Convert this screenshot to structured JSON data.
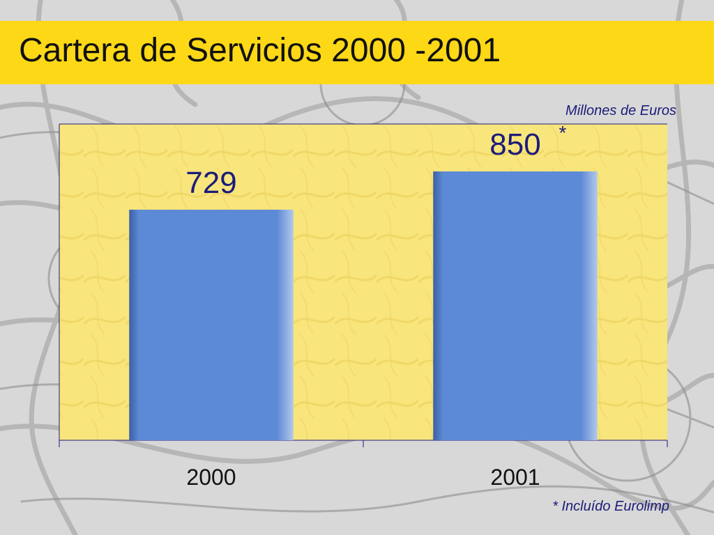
{
  "title": "Cartera de Servicios 2000 -2001",
  "unit_label": "Millones de Euros",
  "footnote": "* Incluído Eurolimp",
  "colors": {
    "title_bar": "#fdd817",
    "plot_area": "#f8e57c",
    "bar": "#5d8ad6",
    "label_text": "#1c1c7a"
  },
  "chart_data": {
    "type": "bar",
    "categories": [
      "2000",
      "2001"
    ],
    "values": [
      729,
      850
    ],
    "value_labels": [
      "729",
      "850"
    ],
    "value_label_marks": [
      "",
      "*"
    ],
    "title": "Cartera de Servicios 2000 -2001",
    "ylabel": "Millones de Euros",
    "xlabel": "",
    "ylim": [
      0,
      1000
    ],
    "grid": false
  }
}
